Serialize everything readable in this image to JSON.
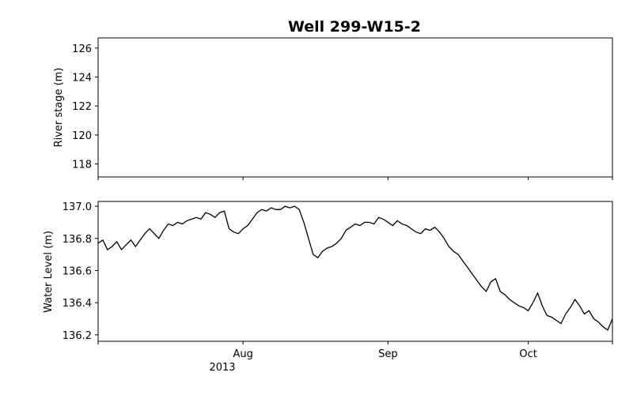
{
  "chart_data": [
    {
      "type": "line",
      "title": "Well 299-W15-2",
      "xlabel": "",
      "ylabel": "River stage (m)",
      "ylim": [
        117.1,
        126.7
      ],
      "yticks": [
        118,
        120,
        122,
        124,
        126
      ],
      "ytick_labels": [
        "118",
        "120",
        "122",
        "124",
        "126"
      ],
      "series": [],
      "grid": false
    },
    {
      "type": "line",
      "title": "",
      "xlabel": "",
      "ylabel": "Water Level (m)",
      "xlim": [
        "2013-07-01",
        "2013-10-19"
      ],
      "ylim": [
        136.16,
        137.03
      ],
      "yticks": [
        136.2,
        136.4,
        136.6,
        136.8,
        137.0
      ],
      "ytick_labels": [
        "136.2",
        "136.4",
        "136.6",
        "136.8",
        "137.0"
      ],
      "xticks": [
        "2013-08-01",
        "2013-09-01",
        "2013-10-01"
      ],
      "xtick_labels": [
        "Aug",
        "Sep",
        "Oct"
      ],
      "xtick_sublabel": "2013",
      "grid": false,
      "series": [
        {
          "color": "#000000",
          "x": [
            "2013-07-01",
            "2013-07-02",
            "2013-07-03",
            "2013-07-04",
            "2013-07-05",
            "2013-07-06",
            "2013-07-07",
            "2013-07-08",
            "2013-07-09",
            "2013-07-10",
            "2013-07-11",
            "2013-07-12",
            "2013-07-13",
            "2013-07-14",
            "2013-07-15",
            "2013-07-16",
            "2013-07-17",
            "2013-07-18",
            "2013-07-19",
            "2013-07-20",
            "2013-07-21",
            "2013-07-22",
            "2013-07-23",
            "2013-07-24",
            "2013-07-25",
            "2013-07-26",
            "2013-07-27",
            "2013-07-28",
            "2013-07-29",
            "2013-07-30",
            "2013-07-31",
            "2013-08-01",
            "2013-08-02",
            "2013-08-03",
            "2013-08-04",
            "2013-08-05",
            "2013-08-06",
            "2013-08-07",
            "2013-08-08",
            "2013-08-09",
            "2013-08-10",
            "2013-08-11",
            "2013-08-12",
            "2013-08-13",
            "2013-08-14",
            "2013-08-15",
            "2013-08-16",
            "2013-08-17",
            "2013-08-18",
            "2013-08-19",
            "2013-08-20",
            "2013-08-21",
            "2013-08-22",
            "2013-08-23",
            "2013-08-24",
            "2013-08-25",
            "2013-08-26",
            "2013-08-27",
            "2013-08-28",
            "2013-08-29",
            "2013-08-30",
            "2013-08-31",
            "2013-09-01",
            "2013-09-02",
            "2013-09-03",
            "2013-09-04",
            "2013-09-05",
            "2013-09-06",
            "2013-09-07",
            "2013-09-08",
            "2013-09-09",
            "2013-09-10",
            "2013-09-11",
            "2013-09-12",
            "2013-09-13",
            "2013-09-14",
            "2013-09-15",
            "2013-09-16",
            "2013-09-17",
            "2013-09-18",
            "2013-09-19",
            "2013-09-20",
            "2013-09-21",
            "2013-09-22",
            "2013-09-23",
            "2013-09-24",
            "2013-09-25",
            "2013-09-26",
            "2013-09-27",
            "2013-09-28",
            "2013-09-29",
            "2013-09-30",
            "2013-10-01",
            "2013-10-02",
            "2013-10-03",
            "2013-10-04",
            "2013-10-05",
            "2013-10-06",
            "2013-10-07",
            "2013-10-08",
            "2013-10-09",
            "2013-10-10",
            "2013-10-11",
            "2013-10-12",
            "2013-10-13",
            "2013-10-14",
            "2013-10-15",
            "2013-10-16",
            "2013-10-17",
            "2013-10-18",
            "2013-10-19"
          ],
          "values": [
            136.77,
            136.79,
            136.73,
            136.75,
            136.78,
            136.73,
            136.76,
            136.79,
            136.75,
            136.79,
            136.83,
            136.86,
            136.83,
            136.8,
            136.85,
            136.89,
            136.88,
            136.9,
            136.89,
            136.91,
            136.92,
            136.93,
            136.92,
            136.96,
            136.95,
            136.93,
            136.96,
            136.97,
            136.86,
            136.84,
            136.83,
            136.86,
            136.88,
            136.92,
            136.96,
            136.98,
            136.97,
            136.99,
            136.98,
            136.98,
            137.0,
            136.99,
            137.0,
            136.98,
            136.9,
            136.8,
            136.7,
            136.68,
            136.72,
            136.74,
            136.75,
            136.77,
            136.8,
            136.85,
            136.87,
            136.89,
            136.88,
            136.9,
            136.9,
            136.89,
            136.93,
            136.92,
            136.9,
            136.88,
            136.91,
            136.89,
            136.88,
            136.86,
            136.84,
            136.83,
            136.86,
            136.85,
            136.87,
            136.84,
            136.8,
            136.75,
            136.72,
            136.7,
            136.66,
            136.62,
            136.58,
            136.54,
            136.5,
            136.47,
            136.53,
            136.55,
            136.47,
            136.45,
            136.42,
            136.4,
            136.38,
            136.37,
            136.35,
            136.4,
            136.46,
            136.38,
            136.32,
            136.31,
            136.29,
            136.27,
            136.33,
            136.37,
            136.42,
            136.38,
            136.33,
            136.35,
            136.3,
            136.28,
            136.25,
            136.23,
            136.3
          ]
        }
      ]
    }
  ]
}
